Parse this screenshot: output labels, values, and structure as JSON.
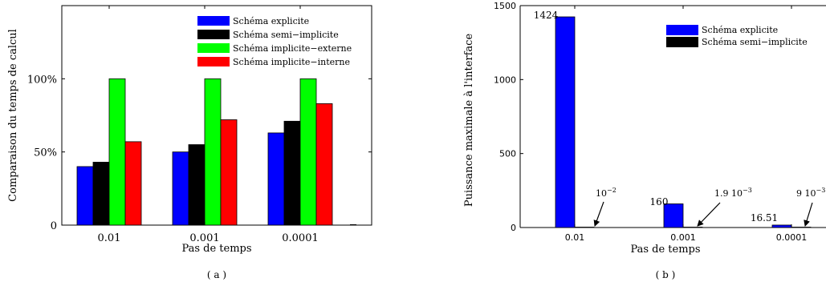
{
  "chart_data": [
    {
      "panel_label": "( a )",
      "type": "bar",
      "categories": [
        "0.01",
        "0.001",
        "0.0001"
      ],
      "xlabel": "Pas de temps",
      "ylabel": "Comparaison du temps de calcul",
      "ylim": [
        0,
        150
      ],
      "yticks": [
        {
          "value": 0,
          "label": "0"
        },
        {
          "value": 50,
          "label": "50%"
        },
        {
          "value": 100,
          "label": "100%"
        }
      ],
      "legend_position": "top-right",
      "series": [
        {
          "name": "Schéma explicite",
          "color": "#0000ff",
          "values": [
            40,
            50,
            63
          ]
        },
        {
          "name": "Schéma semi−implicite",
          "color": "#000000",
          "values": [
            43,
            55,
            71
          ]
        },
        {
          "name": "Schéma implicite−externe",
          "color": "#00ff00",
          "values": [
            100,
            100,
            100
          ]
        },
        {
          "name": "Schéma implicite−interne",
          "color": "#ff0000",
          "values": [
            57,
            72,
            83
          ]
        }
      ]
    },
    {
      "panel_label": "( b )",
      "type": "bar",
      "categories": [
        "0.01",
        "0.001",
        "0.0001"
      ],
      "xlabel": "Pas de temps",
      "ylabel": "Puissance maximale à l'interface",
      "ylim": [
        0,
        1500
      ],
      "yticks": [
        {
          "value": 0,
          "label": "0"
        },
        {
          "value": 500,
          "label": "500"
        },
        {
          "value": 1000,
          "label": "1000"
        },
        {
          "value": 1500,
          "label": "1500"
        }
      ],
      "legend_position": "top-right",
      "series": [
        {
          "name": "Schéma explicite",
          "color": "#0000ff",
          "values": [
            1424,
            160,
            16.51
          ]
        },
        {
          "name": "Schéma semi−implicite",
          "color": "#000000",
          "values": [
            0.01,
            0.0019,
            0.009
          ]
        }
      ],
      "value_labels": [
        "1424",
        "160",
        "16.51"
      ],
      "annotations": [
        {
          "base": "10",
          "exp": "−2"
        },
        {
          "base": "1.9 10",
          "exp": "−3"
        },
        {
          "base": "9 10",
          "exp": "−3"
        }
      ]
    }
  ]
}
